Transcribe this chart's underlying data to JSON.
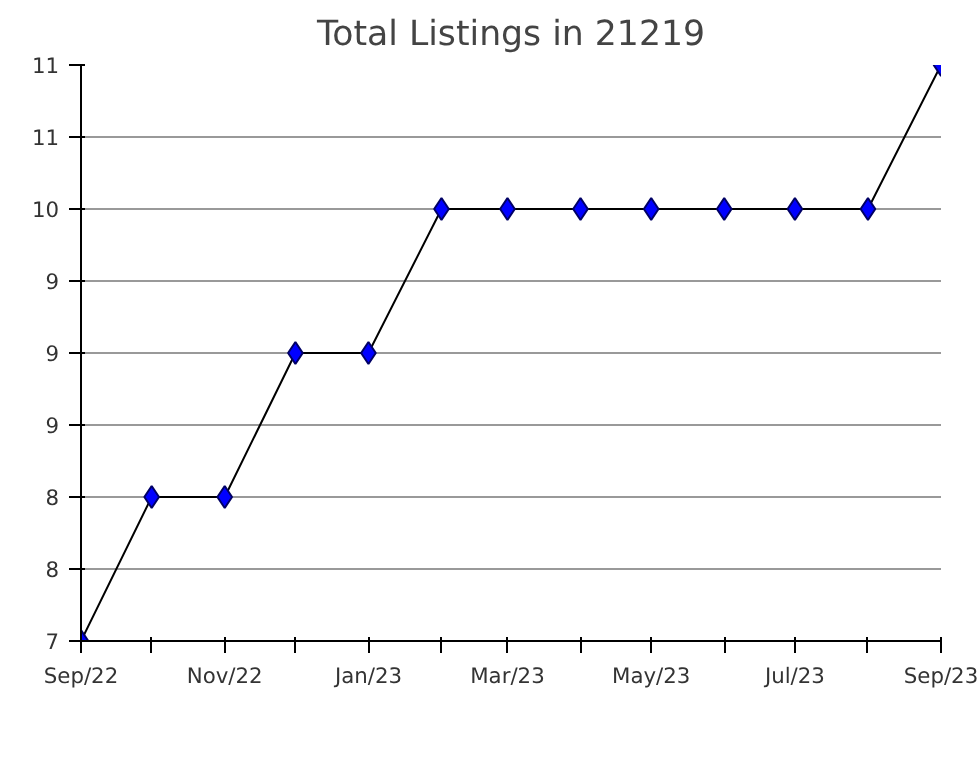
{
  "chart_data": {
    "type": "line",
    "title": "Total Listings in 21219",
    "x": [
      "2022-09",
      "2022-10",
      "2022-11",
      "2022-12",
      "2023-01",
      "2023-02",
      "2023-03",
      "2023-04",
      "2023-05",
      "2023-06",
      "2023-07",
      "2023-08",
      "2023-09"
    ],
    "series": [
      {
        "color": "#0000ff",
        "values": [
          7,
          8,
          8,
          9,
          9,
          10,
          10,
          10,
          10,
          10,
          10,
          10,
          11
        ]
      }
    ],
    "xlim": [
      "2022-09",
      "2023-09"
    ],
    "xticks": [
      {
        "value": "2022-09",
        "label": "Sep/22"
      },
      {
        "value": "2022-10",
        "label": null
      },
      {
        "value": "2022-11",
        "label": "Nov/22"
      },
      {
        "value": "2022-12",
        "label": null
      },
      {
        "value": "2023-01",
        "label": "Jan/23"
      },
      {
        "value": "2023-02",
        "label": null
      },
      {
        "value": "2023-03",
        "label": "Mar/23"
      },
      {
        "value": "2023-04",
        "label": null
      },
      {
        "value": "2023-05",
        "label": "May/23"
      },
      {
        "value": "2023-06",
        "label": null
      },
      {
        "value": "2023-07",
        "label": "Jul/23"
      },
      {
        "value": "2023-08",
        "label": null
      },
      {
        "value": "2023-09",
        "label": "Sep/23"
      }
    ],
    "ylim": [
      7,
      11
    ],
    "yticks": [
      7,
      {
        "value": 7.5,
        "label": "8"
      },
      8,
      {
        "value": 8.5,
        "label": "9"
      },
      9,
      {
        "value": 9.5,
        "label": "9"
      },
      10,
      {
        "value": 10.5,
        "label": "11"
      },
      11
    ],
    "grid": "y",
    "marker": "diamond",
    "line_style": "solid"
  }
}
